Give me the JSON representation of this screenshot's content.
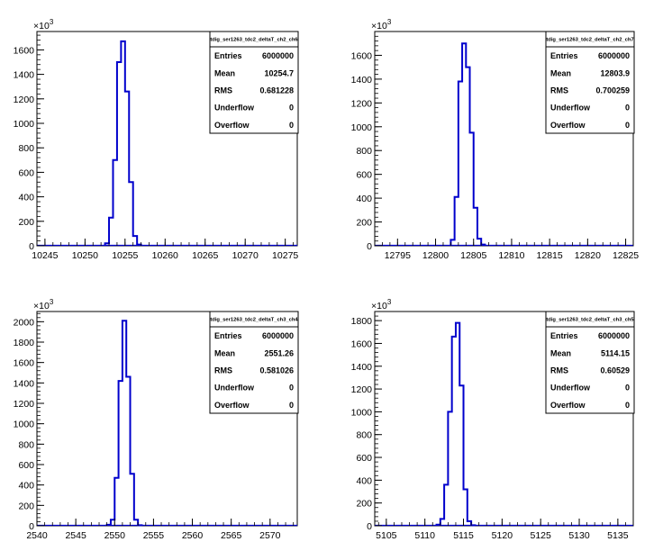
{
  "chart_data": [
    {
      "type": "histogram",
      "title": "tdig_ser1263_tdc2_deltaT_ch2_ch6",
      "y_exponent": "10^3",
      "xlim": [
        10244,
        10276.5
      ],
      "ylim": [
        0,
        1750
      ],
      "x_ticks": [
        10245,
        10250,
        10255,
        10260,
        10265,
        10270,
        10275
      ],
      "y_ticks": [
        0,
        200,
        400,
        600,
        800,
        1000,
        1200,
        1400,
        1600
      ],
      "bin_width": 0.5,
      "bins": [
        {
          "x": 10252.5,
          "y": 20
        },
        {
          "x": 10253.0,
          "y": 230
        },
        {
          "x": 10253.5,
          "y": 700
        },
        {
          "x": 10254.0,
          "y": 1500
        },
        {
          "x": 10254.5,
          "y": 1670
        },
        {
          "x": 10255.0,
          "y": 1260
        },
        {
          "x": 10255.5,
          "y": 520
        },
        {
          "x": 10256.0,
          "y": 80
        },
        {
          "x": 10256.5,
          "y": 10
        }
      ],
      "stats": [
        {
          "label": "Entries",
          "value": "6000000"
        },
        {
          "label": "Mean",
          "value": "10254.7"
        },
        {
          "label": "RMS",
          "value": "0.681228"
        },
        {
          "label": "Underflow",
          "value": "0"
        },
        {
          "label": "Overflow",
          "value": "0"
        }
      ]
    },
    {
      "type": "histogram",
      "title": "tdig_ser1263_tdc2_deltaT_ch2_ch7",
      "y_exponent": "10^3",
      "xlim": [
        12792,
        12826
      ],
      "ylim": [
        0,
        1800
      ],
      "x_ticks": [
        12795,
        12800,
        12805,
        12810,
        12815,
        12820,
        12825
      ],
      "y_ticks": [
        0,
        200,
        400,
        600,
        800,
        1000,
        1200,
        1400,
        1600
      ],
      "bin_width": 0.5,
      "bins": [
        {
          "x": 12802.0,
          "y": 50
        },
        {
          "x": 12802.5,
          "y": 410
        },
        {
          "x": 12803.0,
          "y": 1380
        },
        {
          "x": 12803.5,
          "y": 1700
        },
        {
          "x": 12804.0,
          "y": 1500
        },
        {
          "x": 12804.5,
          "y": 950
        },
        {
          "x": 12805.0,
          "y": 320
        },
        {
          "x": 12805.5,
          "y": 60
        },
        {
          "x": 12806.0,
          "y": 10
        }
      ],
      "stats": [
        {
          "label": "Entries",
          "value": "6000000"
        },
        {
          "label": "Mean",
          "value": "12803.9"
        },
        {
          "label": "RMS",
          "value": "0.700259"
        },
        {
          "label": "Underflow",
          "value": "0"
        },
        {
          "label": "Overflow",
          "value": "0"
        }
      ]
    },
    {
      "type": "histogram",
      "title": "tdig_ser1263_tdc2_deltaT_ch3_ch4",
      "y_exponent": "10^3",
      "xlim": [
        2540,
        2573.5
      ],
      "ylim": [
        0,
        2100
      ],
      "x_ticks": [
        2540,
        2545,
        2550,
        2555,
        2560,
        2565,
        2570
      ],
      "y_ticks": [
        0,
        200,
        400,
        600,
        800,
        1000,
        1200,
        1400,
        1600,
        1800,
        2000
      ],
      "bin_width": 0.5,
      "bins": [
        {
          "x": 2549.0,
          "y": 10
        },
        {
          "x": 2549.5,
          "y": 60
        },
        {
          "x": 2550.0,
          "y": 470
        },
        {
          "x": 2550.5,
          "y": 1420
        },
        {
          "x": 2551.0,
          "y": 2010
        },
        {
          "x": 2551.5,
          "y": 1460
        },
        {
          "x": 2552.0,
          "y": 510
        },
        {
          "x": 2552.5,
          "y": 60
        },
        {
          "x": 2553.0,
          "y": 5
        }
      ],
      "stats": [
        {
          "label": "Entries",
          "value": "6000000"
        },
        {
          "label": "Mean",
          "value": "2551.26"
        },
        {
          "label": "RMS",
          "value": "0.581026"
        },
        {
          "label": "Underflow",
          "value": "0"
        },
        {
          "label": "Overflow",
          "value": "0"
        }
      ]
    },
    {
      "type": "histogram",
      "title": "tdig_ser1263_tdc2_deltaT_ch3_ch5",
      "y_exponent": "10^3",
      "xlim": [
        5103.5,
        5137
      ],
      "ylim": [
        0,
        1880
      ],
      "x_ticks": [
        5105,
        5110,
        5115,
        5120,
        5125,
        5130,
        5135
      ],
      "y_ticks": [
        0,
        200,
        400,
        600,
        800,
        1000,
        1200,
        1400,
        1600,
        1800
      ],
      "bin_width": 0.5,
      "bins": [
        {
          "x": 5111.5,
          "y": 10
        },
        {
          "x": 5112.0,
          "y": 60
        },
        {
          "x": 5112.5,
          "y": 360
        },
        {
          "x": 5113.0,
          "y": 1000
        },
        {
          "x": 5113.5,
          "y": 1660
        },
        {
          "x": 5114.0,
          "y": 1780
        },
        {
          "x": 5114.5,
          "y": 1230
        },
        {
          "x": 5115.0,
          "y": 320
        },
        {
          "x": 5115.5,
          "y": 40
        },
        {
          "x": 5116.0,
          "y": 5
        }
      ],
      "stats": [
        {
          "label": "Entries",
          "value": "6000000"
        },
        {
          "label": "Mean",
          "value": "5114.15"
        },
        {
          "label": "RMS",
          "value": "0.60529"
        },
        {
          "label": "Underflow",
          "value": "0"
        },
        {
          "label": "Overflow",
          "value": "0"
        }
      ]
    }
  ]
}
